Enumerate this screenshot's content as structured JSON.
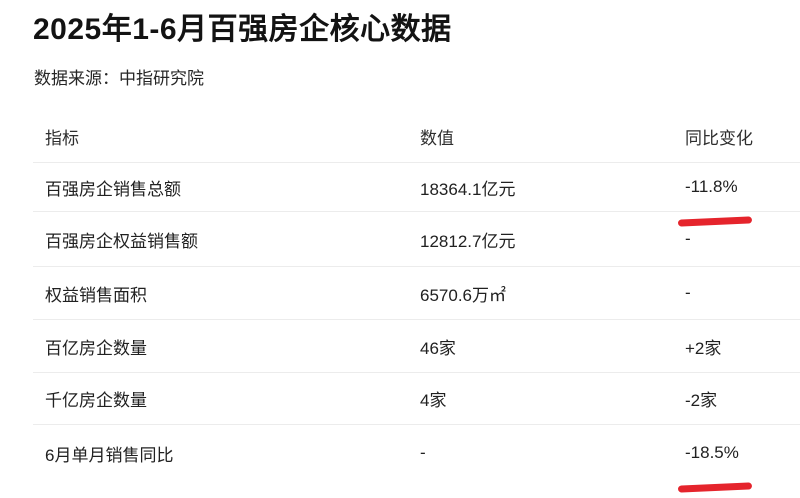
{
  "title": "2025年1-6月百强房企核心数据",
  "source": "数据来源：中指研究院",
  "table": {
    "headers": [
      "指标",
      "数值",
      "同比变化"
    ],
    "rows": [
      {
        "indicator": "百强房企销售总额",
        "value": "18364.1亿元",
        "yoy": "-11.8%",
        "underlined": true
      },
      {
        "indicator": "百强房企权益销售额",
        "value": "12812.7亿元",
        "yoy": "-",
        "underlined": false
      },
      {
        "indicator": "权益销售面积",
        "value": "6570.6万㎡",
        "yoy": "-",
        "underlined": false
      },
      {
        "indicator": "百亿房企数量",
        "value": "46家",
        "yoy": "+2家",
        "underlined": false
      },
      {
        "indicator": "千亿房企数量",
        "value": "4家",
        "yoy": "-2家",
        "underlined": false
      },
      {
        "indicator": "6月单月销售同比",
        "value": "-",
        "yoy": "-18.5%",
        "underlined": true
      }
    ]
  },
  "colors": {
    "background": "#ffffff",
    "text": "#212121",
    "title_text": "#131313",
    "divider": "#ececec",
    "annotation_red": "#e5242c"
  },
  "chart_data": {
    "type": "table",
    "title": "2025年1-6月百强房企核心数据",
    "source": "数据来源：中指研究院",
    "columns": [
      "指标",
      "数值",
      "同比变化"
    ],
    "rows": [
      [
        "百强房企销售总额",
        "18364.1亿元",
        "-11.8%"
      ],
      [
        "百强房企权益销售额",
        "12812.7亿元",
        "-"
      ],
      [
        "权益销售面积",
        "6570.6万㎡",
        "-"
      ],
      [
        "百亿房企数量",
        "46家",
        "+2家"
      ],
      [
        "千亿房企数量",
        "4家",
        "-2家"
      ],
      [
        "6月单月销售同比",
        "-",
        "-18.5%"
      ]
    ],
    "annotations": [
      {
        "target": "-11.8%",
        "mark": "red marker underline"
      },
      {
        "target": "-18.5%",
        "mark": "red marker underline"
      }
    ],
    "layout": {
      "grid": "horizontal row dividers only",
      "header_position": "top"
    }
  }
}
